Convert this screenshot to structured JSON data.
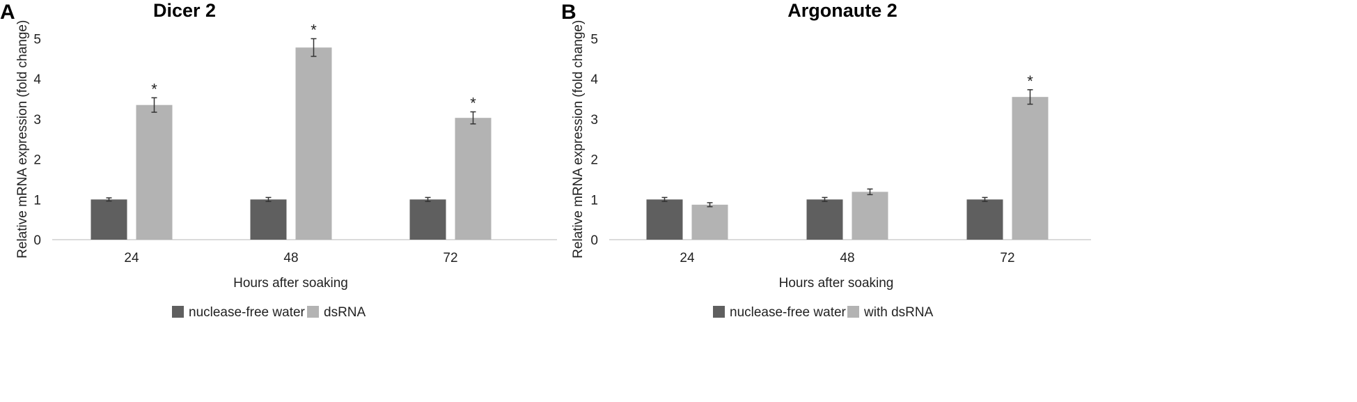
{
  "chart_data": [
    {
      "type": "bar",
      "panel_letter": "A",
      "title": "Dicer 2",
      "xlabel": "Hours after soaking",
      "ylabel": "Relative mRNA expression (fold change)",
      "ylim": [
        0,
        5
      ],
      "yticks": [
        0,
        1,
        2,
        3,
        4,
        5
      ],
      "grid": false,
      "legend_position": "bottom",
      "categories": [
        "24",
        "48",
        "72"
      ],
      "series": [
        {
          "name": "nuclease-free water",
          "color": "#5f5f5f",
          "values": [
            1.0,
            1.0,
            1.0
          ],
          "errors": [
            0.04,
            0.05,
            0.05
          ],
          "annotations": [
            "",
            "",
            ""
          ]
        },
        {
          "name": "dsRNA",
          "color": "#b3b3b3",
          "values": [
            3.35,
            4.78,
            3.03
          ],
          "errors": [
            0.18,
            0.22,
            0.15
          ],
          "annotations": [
            "*",
            "*",
            "*"
          ]
        }
      ]
    },
    {
      "type": "bar",
      "panel_letter": "B",
      "title": "Argonaute 2",
      "xlabel": "Hours after soaking",
      "ylabel": "Relative mRNA expression (fold change)",
      "ylim": [
        0,
        5
      ],
      "yticks": [
        0,
        1,
        2,
        3,
        4,
        5
      ],
      "grid": false,
      "legend_position": "bottom",
      "categories": [
        "24",
        "48",
        "72"
      ],
      "series": [
        {
          "name": "nuclease-free water",
          "color": "#5f5f5f",
          "values": [
            1.0,
            1.0,
            1.0
          ],
          "errors": [
            0.05,
            0.05,
            0.05
          ],
          "annotations": [
            "",
            "",
            ""
          ]
        },
        {
          "name": "with dsRNA",
          "color": "#b3b3b3",
          "values": [
            0.87,
            1.19,
            3.55
          ],
          "errors": [
            0.05,
            0.07,
            0.18
          ],
          "annotations": [
            "",
            "",
            "*"
          ]
        }
      ]
    }
  ]
}
